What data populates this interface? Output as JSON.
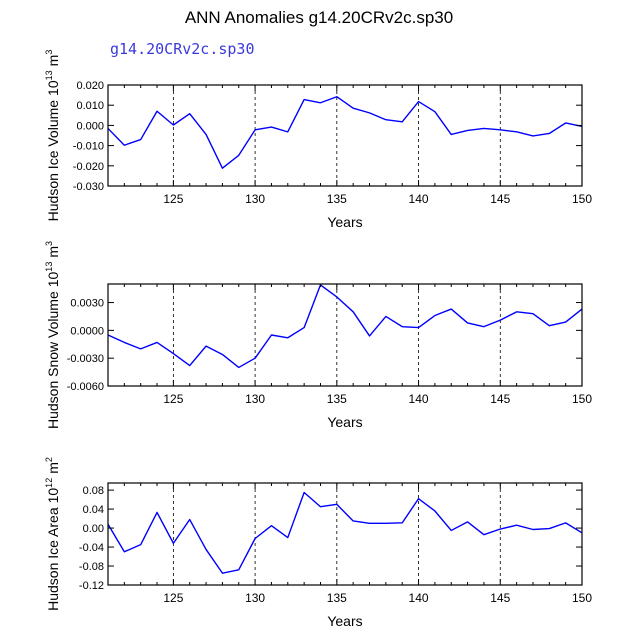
{
  "figure": {
    "title": "ANN Anomalies g14.20CRv2c.sp30",
    "subtitle": "g14.20CRv2c.sp30"
  },
  "colors": {
    "line": "#0000ff",
    "axes": "#000000",
    "grid": "#000000"
  },
  "chart_data": [
    {
      "type": "line",
      "ylabel": "Hudson Ice Volume",
      "yunit_base": "10",
      "yunit_exp": "13",
      "yunit_suffix": "m",
      "yunit_suffix_exp": "3",
      "xlabel": "Years",
      "xlim": [
        121,
        150
      ],
      "ylim": [
        -0.03,
        0.02
      ],
      "xticks": [
        125,
        130,
        135,
        140,
        145,
        150
      ],
      "xtick_labels": [
        "125",
        "130",
        "135",
        "140",
        "145",
        "150"
      ],
      "yticks": [
        -0.03,
        -0.02,
        -0.01,
        0.0,
        0.01,
        0.02
      ],
      "ytick_labels": [
        "-0.030",
        "-0.020",
        "-0.010",
        "0.000",
        "0.010",
        "0.020"
      ],
      "grid_x": [
        125,
        130,
        135,
        140,
        145
      ],
      "x": [
        121,
        122,
        123,
        124,
        125,
        126,
        127,
        128,
        129,
        130,
        131,
        132,
        133,
        134,
        135,
        136,
        137,
        138,
        139,
        140,
        141,
        142,
        143,
        144,
        145,
        146,
        147,
        148,
        149,
        150
      ],
      "values": [
        -0.0015,
        -0.0098,
        -0.007,
        0.007,
        0.0002,
        0.0058,
        -0.0045,
        -0.0212,
        -0.0148,
        -0.0022,
        -0.0008,
        -0.0032,
        0.0128,
        0.0112,
        0.0142,
        0.0085,
        0.0062,
        0.0028,
        0.0018,
        0.0118,
        0.0068,
        -0.0045,
        -0.0025,
        -0.0015,
        -0.0022,
        -0.0032,
        -0.0052,
        -0.004,
        0.0012,
        -0.0005
      ]
    },
    {
      "type": "line",
      "ylabel": "Hudson Snow Volume",
      "yunit_base": "10",
      "yunit_exp": "13",
      "yunit_suffix": "m",
      "yunit_suffix_exp": "3",
      "xlabel": "Years",
      "xlim": [
        121,
        150
      ],
      "ylim": [
        -0.006,
        0.005
      ],
      "xticks": [
        125,
        130,
        135,
        140,
        145,
        150
      ],
      "xtick_labels": [
        "125",
        "130",
        "135",
        "140",
        "145",
        "150"
      ],
      "yticks": [
        -0.006,
        -0.003,
        0.0,
        0.003
      ],
      "ytick_labels": [
        "-0.0060",
        "-0.0030",
        "0.0000",
        "0.0030"
      ],
      "grid_x": [
        125,
        130,
        135,
        140,
        145
      ],
      "x": [
        121,
        122,
        123,
        124,
        125,
        126,
        127,
        128,
        129,
        130,
        131,
        132,
        133,
        134,
        135,
        136,
        137,
        138,
        139,
        140,
        141,
        142,
        143,
        144,
        145,
        146,
        147,
        148,
        149,
        150
      ],
      "values": [
        -0.0005,
        -0.0013,
        -0.002,
        -0.0013,
        -0.0025,
        -0.0038,
        -0.0017,
        -0.0026,
        -0.004,
        -0.003,
        -0.0005,
        -0.0008,
        0.0003,
        0.0049,
        0.0036,
        0.002,
        -0.0006,
        0.0015,
        0.0004,
        0.0003,
        0.0016,
        0.0023,
        0.0008,
        0.0004,
        0.0011,
        0.002,
        0.0018,
        0.0005,
        0.0009,
        0.0023
      ]
    },
    {
      "type": "line",
      "ylabel": "Hudson Ice Area",
      "yunit_base": "10",
      "yunit_exp": "12",
      "yunit_suffix": "m",
      "yunit_suffix_exp": "2",
      "xlabel": "Years",
      "xlim": [
        121,
        150
      ],
      "ylim": [
        -0.12,
        0.095
      ],
      "xticks": [
        125,
        130,
        135,
        140,
        145,
        150
      ],
      "xtick_labels": [
        "125",
        "130",
        "135",
        "140",
        "145",
        "150"
      ],
      "yticks": [
        -0.12,
        -0.08,
        -0.04,
        0.0,
        0.04,
        0.08
      ],
      "ytick_labels": [
        "-0.12",
        "-0.08",
        "-0.04",
        "0.00",
        "0.04",
        "0.08"
      ],
      "grid_x": [
        125,
        130,
        135,
        140,
        145
      ],
      "x": [
        121,
        122,
        123,
        124,
        125,
        126,
        127,
        128,
        129,
        130,
        131,
        132,
        133,
        134,
        135,
        136,
        137,
        138,
        139,
        140,
        141,
        142,
        143,
        144,
        145,
        146,
        147,
        148,
        149,
        150
      ],
      "values": [
        0.008,
        -0.05,
        -0.035,
        0.033,
        -0.032,
        0.018,
        -0.045,
        -0.095,
        -0.088,
        -0.022,
        0.005,
        -0.02,
        0.075,
        0.045,
        0.05,
        0.015,
        0.01,
        0.01,
        0.011,
        0.062,
        0.036,
        -0.005,
        0.013,
        -0.014,
        -0.002,
        0.006,
        -0.003,
        -0.001,
        0.011,
        -0.01
      ]
    }
  ]
}
